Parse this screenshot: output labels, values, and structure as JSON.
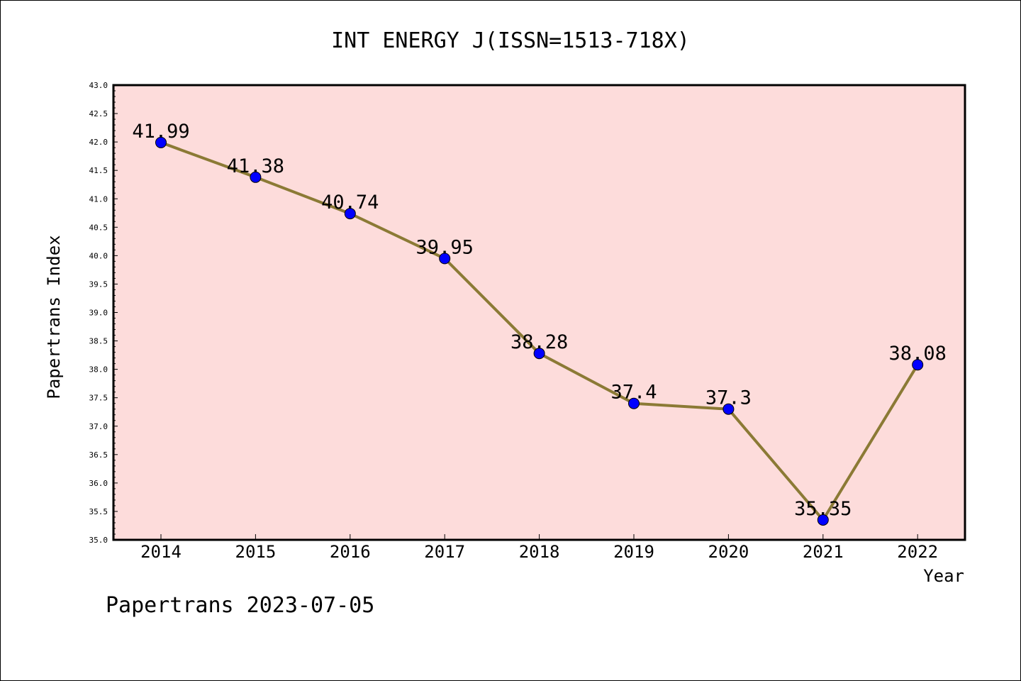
{
  "chart_data": {
    "type": "line",
    "title": "INT ENERGY J(ISSN=1513-718X)",
    "xlabel": "Year",
    "ylabel": "Papertrans Index",
    "categories": [
      "2014",
      "2015",
      "2016",
      "2017",
      "2018",
      "2019",
      "2020",
      "2021",
      "2022"
    ],
    "values": [
      41.99,
      41.38,
      40.74,
      39.95,
      38.28,
      37.4,
      37.3,
      35.35,
      38.08
    ],
    "data_labels": [
      "41.99",
      "41.38",
      "40.74",
      "39.95",
      "38.28",
      "37.4",
      "37.3",
      "35.35",
      "38.08"
    ],
    "ylim": [
      35.0,
      43.0
    ],
    "y_ticks": [
      "35.0",
      "35.5",
      "36.0",
      "36.5",
      "37.0",
      "37.5",
      "38.0",
      "38.5",
      "39.0",
      "39.5",
      "40.0",
      "40.5",
      "41.0",
      "41.5",
      "42.0",
      "42.5",
      "43.0"
    ],
    "grid": false,
    "colors": {
      "plot_background": "#fddcdb",
      "line": "#8b7a35",
      "marker": "#0000ff"
    }
  },
  "footer": "Papertrans 2023-07-05"
}
